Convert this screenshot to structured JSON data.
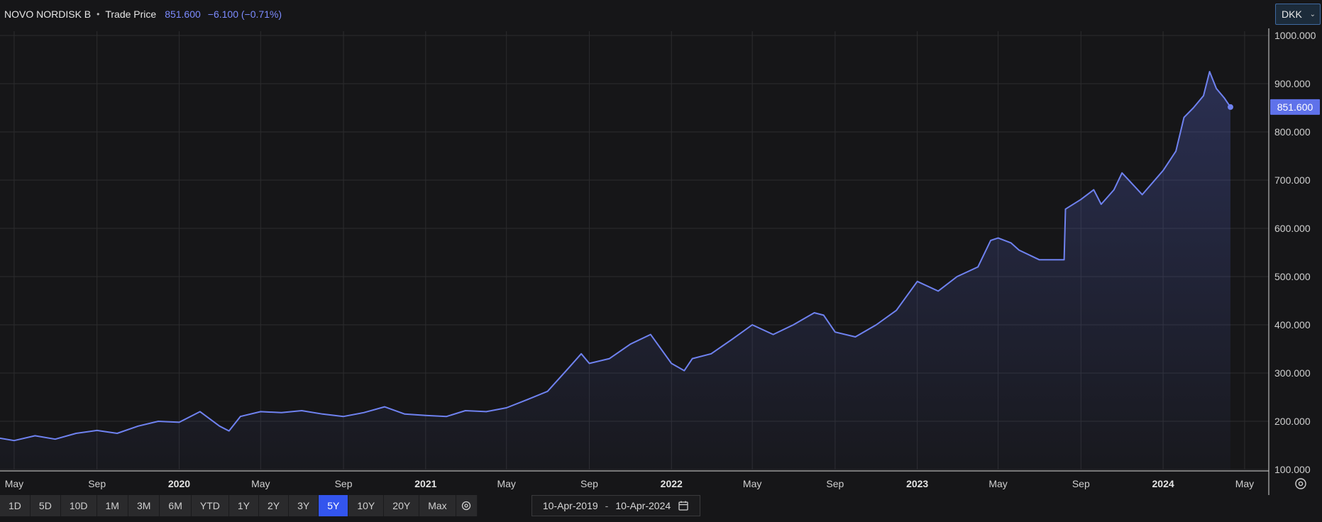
{
  "header": {
    "instrument": "NOVO NORDISK B",
    "separator": "•",
    "price_type": "Trade Price",
    "last_price": "851.600",
    "change": "−6.100 (−0.71%)"
  },
  "currency": {
    "value": "DKK",
    "icon": "chevron-down-icon"
  },
  "chart_data": {
    "type": "area",
    "title": "",
    "xlabel": "",
    "ylabel": "",
    "grid": true,
    "ylim": [
      100,
      1000
    ],
    "x_range": [
      "2019-04-10",
      "2024-04-10"
    ],
    "y_tick_labels": [
      "1000.000",
      "900.000",
      "800.000",
      "700.000",
      "600.000",
      "500.000",
      "400.000",
      "300.000",
      "200.000",
      "100.000"
    ],
    "x_tick_labels": [
      {
        "date": "2019-05-01",
        "label": "May",
        "bold": false
      },
      {
        "date": "2019-09-01",
        "label": "Sep",
        "bold": false
      },
      {
        "date": "2020-01-01",
        "label": "2020",
        "bold": true
      },
      {
        "date": "2020-05-01",
        "label": "May",
        "bold": false
      },
      {
        "date": "2020-09-01",
        "label": "Sep",
        "bold": false
      },
      {
        "date": "2021-01-01",
        "label": "2021",
        "bold": true
      },
      {
        "date": "2021-05-01",
        "label": "May",
        "bold": false
      },
      {
        "date": "2021-09-01",
        "label": "Sep",
        "bold": false
      },
      {
        "date": "2022-01-01",
        "label": "2022",
        "bold": true
      },
      {
        "date": "2022-05-01",
        "label": "May",
        "bold": false
      },
      {
        "date": "2022-09-01",
        "label": "Sep",
        "bold": false
      },
      {
        "date": "2023-01-01",
        "label": "2023",
        "bold": true
      },
      {
        "date": "2023-05-01",
        "label": "May",
        "bold": false
      },
      {
        "date": "2023-09-01",
        "label": "Sep",
        "bold": false
      },
      {
        "date": "2024-01-01",
        "label": "2024",
        "bold": true
      },
      {
        "date": "2024-05-01",
        "label": "May",
        "bold": false
      }
    ],
    "current_value_label": "851.600",
    "series": [
      {
        "line_color": "#6f82f0",
        "points": [
          [
            "2019-04-10",
            165
          ],
          [
            "2019-05-01",
            160
          ],
          [
            "2019-06-01",
            170
          ],
          [
            "2019-07-01",
            163
          ],
          [
            "2019-08-01",
            175
          ],
          [
            "2019-09-01",
            181
          ],
          [
            "2019-10-01",
            175
          ],
          [
            "2019-11-01",
            190
          ],
          [
            "2019-12-01",
            200
          ],
          [
            "2020-01-01",
            198
          ],
          [
            "2020-02-01",
            220
          ],
          [
            "2020-03-01",
            190
          ],
          [
            "2020-03-15",
            180
          ],
          [
            "2020-04-01",
            210
          ],
          [
            "2020-05-01",
            220
          ],
          [
            "2020-06-01",
            218
          ],
          [
            "2020-07-01",
            222
          ],
          [
            "2020-08-01",
            215
          ],
          [
            "2020-09-01",
            210
          ],
          [
            "2020-10-01",
            218
          ],
          [
            "2020-11-01",
            230
          ],
          [
            "2020-12-01",
            215
          ],
          [
            "2021-01-01",
            212
          ],
          [
            "2021-02-01",
            210
          ],
          [
            "2021-03-01",
            222
          ],
          [
            "2021-04-01",
            220
          ],
          [
            "2021-05-01",
            228
          ],
          [
            "2021-06-01",
            245
          ],
          [
            "2021-07-01",
            262
          ],
          [
            "2021-08-01",
            310
          ],
          [
            "2021-08-20",
            340
          ],
          [
            "2021-09-01",
            320
          ],
          [
            "2021-10-01",
            330
          ],
          [
            "2021-11-01",
            360
          ],
          [
            "2021-12-01",
            380
          ],
          [
            "2022-01-01",
            320
          ],
          [
            "2022-01-20",
            305
          ],
          [
            "2022-02-01",
            330
          ],
          [
            "2022-03-01",
            340
          ],
          [
            "2022-04-01",
            370
          ],
          [
            "2022-05-01",
            400
          ],
          [
            "2022-06-01",
            380
          ],
          [
            "2022-07-01",
            400
          ],
          [
            "2022-08-01",
            425
          ],
          [
            "2022-08-15",
            420
          ],
          [
            "2022-09-01",
            385
          ],
          [
            "2022-10-01",
            375
          ],
          [
            "2022-11-01",
            400
          ],
          [
            "2022-12-01",
            430
          ],
          [
            "2023-01-01",
            490
          ],
          [
            "2023-02-01",
            470
          ],
          [
            "2023-03-01",
            500
          ],
          [
            "2023-04-01",
            520
          ],
          [
            "2023-04-20",
            575
          ],
          [
            "2023-05-01",
            580
          ],
          [
            "2023-05-20",
            570
          ],
          [
            "2023-06-01",
            555
          ],
          [
            "2023-07-01",
            535
          ],
          [
            "2023-08-07",
            535
          ],
          [
            "2023-08-09",
            640
          ],
          [
            "2023-09-01",
            660
          ],
          [
            "2023-09-20",
            680
          ],
          [
            "2023-10-01",
            650
          ],
          [
            "2023-10-20",
            680
          ],
          [
            "2023-11-01",
            715
          ],
          [
            "2023-12-01",
            670
          ],
          [
            "2024-01-01",
            720
          ],
          [
            "2024-01-20",
            760
          ],
          [
            "2024-02-01",
            830
          ],
          [
            "2024-02-15",
            850
          ],
          [
            "2024-03-01",
            875
          ],
          [
            "2024-03-10",
            925
          ],
          [
            "2024-03-20",
            890
          ],
          [
            "2024-04-01",
            870
          ],
          [
            "2024-04-10",
            851.6
          ]
        ]
      }
    ]
  },
  "range_buttons": [
    {
      "label": "1D",
      "active": false
    },
    {
      "label": "5D",
      "active": false
    },
    {
      "label": "10D",
      "active": false
    },
    {
      "label": "1M",
      "active": false
    },
    {
      "label": "3M",
      "active": false
    },
    {
      "label": "6M",
      "active": false
    },
    {
      "label": "YTD",
      "active": false
    },
    {
      "label": "1Y",
      "active": false
    },
    {
      "label": "2Y",
      "active": false
    },
    {
      "label": "3Y",
      "active": false
    },
    {
      "label": "5Y",
      "active": true
    },
    {
      "label": "10Y",
      "active": false
    },
    {
      "label": "20Y",
      "active": false
    },
    {
      "label": "Max",
      "active": false
    }
  ],
  "date_range": {
    "from": "10-Apr-2019",
    "separator": "-",
    "to": "10-Apr-2024"
  }
}
